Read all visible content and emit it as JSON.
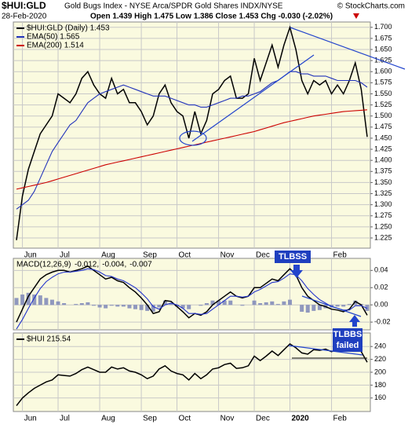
{
  "header": {
    "symbol": "$HUI:GLD",
    "description": "Gold Bugs Index - NYSE Arca/SPDR Gold Shares INDX/NYSE",
    "credit": "© StockCharts.com",
    "date": "28-Feb-2020",
    "quote": "Open 1.439  High 1.475  Low 1.386  Close 1.453  Chg -0.030 (-2.02%)"
  },
  "chart_data": [
    {
      "type": "line",
      "categories": [
        null,
        "Jun",
        null,
        null,
        null,
        null,
        null,
        "Jul",
        null,
        null,
        null,
        null,
        null,
        null,
        "Aug",
        null,
        null,
        null,
        null,
        null,
        null,
        "Sep",
        null,
        null,
        null,
        null,
        null,
        "Oct",
        null,
        null,
        null,
        null,
        null,
        null,
        "Nov",
        null,
        null,
        null,
        null,
        null,
        "Dec",
        null,
        null,
        null,
        null,
        null,
        "2020",
        null,
        null,
        null,
        null,
        null,
        null,
        "Feb",
        null,
        null,
        null,
        null,
        null,
        null
      ],
      "series": [
        {
          "name": "$HUI:GLD (Daily) 1.453",
          "color": "#000000",
          "values": [
            1.22,
            1.32,
            1.38,
            1.42,
            1.46,
            1.48,
            1.5,
            1.55,
            1.54,
            1.53,
            1.55,
            1.585,
            1.6,
            1.57,
            1.55,
            1.54,
            1.585,
            1.55,
            1.56,
            1.53,
            1.53,
            1.51,
            1.48,
            1.5,
            1.55,
            1.57,
            1.53,
            1.51,
            1.5,
            1.45,
            1.51,
            1.46,
            1.49,
            1.55,
            1.56,
            1.58,
            1.59,
            1.54,
            1.54,
            1.55,
            1.63,
            1.58,
            1.62,
            1.66,
            1.61,
            1.66,
            1.7,
            1.65,
            1.58,
            1.55,
            1.58,
            1.57,
            1.58,
            1.55,
            1.57,
            1.55,
            1.58,
            1.62,
            1.56,
            1.453
          ]
        },
        {
          "name": "EMA(50) 1.565",
          "color": "#2233bb",
          "values": [
            1.29,
            1.3,
            1.31,
            1.33,
            1.36,
            1.39,
            1.42,
            1.44,
            1.46,
            1.48,
            1.49,
            1.51,
            1.53,
            1.54,
            1.55,
            1.555,
            1.56,
            1.565,
            1.57,
            1.565,
            1.56,
            1.555,
            1.55,
            1.545,
            1.545,
            1.545,
            1.54,
            1.535,
            1.53,
            1.525,
            1.525,
            1.52,
            1.52,
            1.525,
            1.53,
            1.535,
            1.54,
            1.54,
            1.545,
            1.545,
            1.55,
            1.555,
            1.565,
            1.575,
            1.58,
            1.59,
            1.6,
            1.6,
            1.595,
            1.595,
            1.59,
            1.59,
            1.59,
            1.585,
            1.58,
            1.58,
            1.58,
            1.58,
            1.575,
            1.565
          ]
        },
        {
          "name": "EMA(200) 1.514",
          "color": "#cc0000",
          "values": [
            1.335,
            1.338,
            1.341,
            1.344,
            1.347,
            1.35,
            1.354,
            1.358,
            1.362,
            1.366,
            1.37,
            1.374,
            1.378,
            1.382,
            1.386,
            1.39,
            1.393,
            1.396,
            1.399,
            1.402,
            1.405,
            1.408,
            1.411,
            1.414,
            1.417,
            1.42,
            1.423,
            1.426,
            1.429,
            1.432,
            1.435,
            1.438,
            1.441,
            1.444,
            1.447,
            1.45,
            1.453,
            1.456,
            1.459,
            1.462,
            1.465,
            1.469,
            1.473,
            1.477,
            1.481,
            1.485,
            1.488,
            1.491,
            1.494,
            1.497,
            1.5,
            1.502,
            1.504,
            1.506,
            1.508,
            1.51,
            1.511,
            1.512,
            1.513,
            1.514
          ]
        }
      ],
      "ylim": [
        1.202,
        1.712
      ],
      "yticks": [
        1.225,
        {
          "value": 1.25,
          "label": "1.250"
        },
        1.275,
        {
          "value": 1.3,
          "label": "1.300"
        },
        1.325,
        {
          "value": 1.35,
          "label": "1.350"
        },
        1.375,
        {
          "value": 1.4,
          "label": "1.400"
        },
        1.425,
        {
          "value": 1.45,
          "label": "1.450"
        },
        1.475,
        {
          "value": 1.5,
          "label": "1.500"
        },
        1.525,
        {
          "value": 1.55,
          "label": "1.550"
        },
        1.575,
        {
          "value": 1.6,
          "label": "1.600"
        },
        1.625,
        {
          "value": 1.65,
          "label": "1.650"
        },
        1.675,
        {
          "value": 1.7,
          "label": "1.700"
        }
      ],
      "grid": true,
      "legend": "top-left"
    },
    {
      "type": "macd",
      "legend_title": "MACD(12,26,9)",
      "series": [
        {
          "name": "-0.012,",
          "color": "#000000",
          "values": [
            -0.02,
            -0.005,
            0.01,
            0.02,
            0.03,
            0.035,
            0.038,
            0.04,
            0.04,
            0.038,
            0.04,
            0.042,
            0.045,
            0.04,
            0.035,
            0.03,
            0.032,
            0.028,
            0.026,
            0.02,
            0.015,
            0.008,
            0.0,
            -0.01,
            -0.008,
            0.005,
            0.004,
            -0.002,
            -0.008,
            -0.015,
            -0.01,
            -0.012,
            -0.008,
            0.0,
            0.005,
            0.01,
            0.015,
            0.01,
            0.008,
            0.01,
            0.02,
            0.02,
            0.025,
            0.03,
            0.028,
            0.035,
            0.042,
            0.035,
            0.02,
            0.01,
            0.005,
            0.0,
            -0.002,
            -0.005,
            -0.006,
            -0.008,
            -0.005,
            0.004,
            0.0,
            -0.012
          ]
        },
        {
          "name": "-0.004,",
          "color": "#2233cc",
          "values": [
            -0.028,
            -0.017,
            -0.004,
            0.008,
            0.019,
            0.027,
            0.032,
            0.036,
            0.038,
            0.038,
            0.039,
            0.04,
            0.042,
            0.041,
            0.038,
            0.034,
            0.033,
            0.03,
            0.028,
            0.024,
            0.02,
            0.014,
            0.007,
            -0.002,
            -0.005,
            0.0,
            0.002,
            0.0,
            -0.004,
            -0.01,
            -0.01,
            -0.011,
            -0.01,
            -0.005,
            0.0,
            0.005,
            0.01,
            0.01,
            0.009,
            0.01,
            0.015,
            0.018,
            0.022,
            0.026,
            0.027,
            0.031,
            0.036,
            0.035,
            0.028,
            0.019,
            0.012,
            0.006,
            0.002,
            -0.002,
            -0.004,
            -0.006,
            -0.006,
            -0.001,
            -0.001,
            -0.004
          ]
        },
        {
          "name": "-0.007",
          "color": "#7c86b8",
          "style": "histogram",
          "values": [
            0.008,
            0.012,
            0.014,
            0.012,
            0.011,
            0.008,
            0.006,
            0.004,
            0.002,
            0.0,
            0.001,
            0.002,
            0.003,
            -0.001,
            -0.003,
            -0.004,
            -0.001,
            -0.002,
            -0.002,
            -0.004,
            -0.005,
            -0.006,
            -0.007,
            -0.008,
            -0.003,
            0.005,
            0.002,
            -0.002,
            -0.004,
            -0.005,
            0.0,
            -0.001,
            0.002,
            0.005,
            0.005,
            0.005,
            0.005,
            0.0,
            -0.001,
            0.0,
            0.005,
            0.002,
            0.003,
            0.004,
            0.001,
            0.004,
            0.006,
            0.0,
            -0.008,
            -0.009,
            -0.007,
            -0.006,
            -0.004,
            -0.003,
            -0.002,
            -0.002,
            0.001,
            0.005,
            0.001,
            -0.007
          ]
        }
      ],
      "ylim": [
        -0.029,
        0.054
      ],
      "yticks": [
        0.04,
        0.02,
        {
          "value": 0,
          "label": "0.00"
        },
        -0.02
      ],
      "grid": true,
      "annotations": [
        "TLBSS",
        "TLBBS",
        "failed"
      ]
    },
    {
      "type": "line",
      "series": [
        {
          "name": "$HUI 215.54",
          "color": "#000000",
          "values": [
            148,
            160,
            168,
            175,
            180,
            185,
            188,
            196,
            195,
            194,
            198,
            204,
            208,
            204,
            200,
            200,
            208,
            205,
            207,
            202,
            200,
            196,
            190,
            194,
            205,
            210,
            202,
            198,
            196,
            188,
            198,
            190,
            196,
            205,
            207,
            212,
            214,
            206,
            207,
            210,
            225,
            218,
            225,
            233,
            226,
            235,
            244,
            238,
            230,
            228,
            235,
            234,
            236,
            232,
            236,
            233,
            238,
            244,
            232,
            215.54
          ]
        }
      ],
      "ylim": [
        139,
        261
      ],
      "yticks": [
        160,
        180,
        200,
        220,
        240
      ],
      "grid": true
    }
  ]
}
